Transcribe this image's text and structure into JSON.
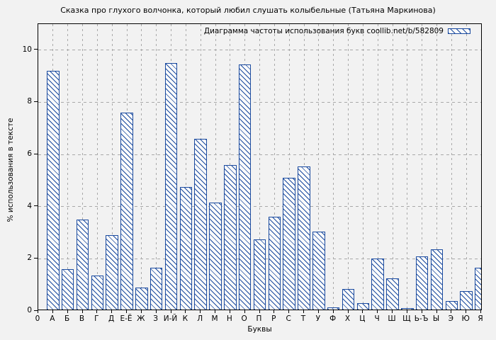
{
  "colors": {
    "background": "#f2f2f2",
    "frame": "#000000",
    "grid": "#a9a9a9",
    "bar_border": "#1a4a9f",
    "bar_fill": "#fbfbfb",
    "text": "#000000"
  },
  "chart_data": {
    "type": "bar",
    "title": "Сказка про глухого волчонка, который любил слушать колыбельные (Татьяна Маркинова)",
    "legend_label": "Диаграмма частоты использования букв coollib.net/b/582809",
    "legend_position": "top-right",
    "xlabel": "Буквы",
    "ylabel": "% использования в тексте",
    "origin_label": "0",
    "categories": [
      "А",
      "Б",
      "В",
      "Г",
      "Д",
      "Е-Ё",
      "Ж",
      "З",
      "И-Й",
      "К",
      "Л",
      "М",
      "Н",
      "О",
      "П",
      "Р",
      "С",
      "Т",
      "У",
      "Ф",
      "Х",
      "Ц",
      "Ч",
      "Ш",
      "Щ",
      "Ь-Ъ",
      "Ы",
      "Э",
      "Ю",
      "Я"
    ],
    "values": [
      9.15,
      1.55,
      3.45,
      1.3,
      2.85,
      7.55,
      0.85,
      1.6,
      9.45,
      4.7,
      6.55,
      4.1,
      5.55,
      9.4,
      2.7,
      3.55,
      5.05,
      5.5,
      3.0,
      0.07,
      0.8,
      0.25,
      1.95,
      1.2,
      0.05,
      2.05,
      2.3,
      0.33,
      0.7,
      1.6
    ],
    "yticks": [
      0,
      2,
      4,
      6,
      8,
      10
    ],
    "ylim": [
      0,
      11
    ],
    "grid": true,
    "hatch": "\\"
  }
}
